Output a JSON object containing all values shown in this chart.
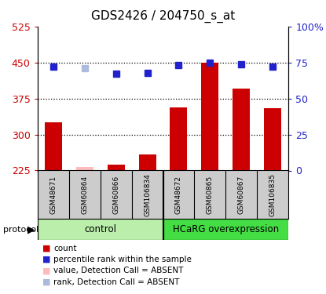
{
  "title": "GDS2426 / 204750_s_at",
  "samples": [
    "GSM48671",
    "GSM60864",
    "GSM60866",
    "GSM106834",
    "GSM48672",
    "GSM60865",
    "GSM60867",
    "GSM106835"
  ],
  "bar_values": [
    325,
    232,
    238,
    258,
    357,
    450,
    395,
    355
  ],
  "bar_colors": [
    "#cc0000",
    "#ffbbbb",
    "#cc0000",
    "#cc0000",
    "#cc0000",
    "#cc0000",
    "#cc0000",
    "#cc0000"
  ],
  "rank_values": [
    72,
    71,
    67,
    68,
    73,
    75,
    74,
    72
  ],
  "rank_colors": [
    "#2222cc",
    "#aabbdd",
    "#2222cc",
    "#2222cc",
    "#2222cc",
    "#2222cc",
    "#2222cc",
    "#2222cc"
  ],
  "ylim_left": [
    225,
    525
  ],
  "ylim_right": [
    0,
    100
  ],
  "yticks_left": [
    225,
    300,
    375,
    450,
    525
  ],
  "yticks_right": [
    0,
    25,
    50,
    75,
    100
  ],
  "ytick_labels_right": [
    "0",
    "25",
    "50",
    "75",
    "100%"
  ],
  "protocol_groups": [
    {
      "label": "control",
      "start": 0,
      "end": 4,
      "color": "#bbeeaa"
    },
    {
      "label": "HCaRG overexpression",
      "start": 4,
      "end": 8,
      "color": "#44dd44"
    }
  ],
  "protocol_label": "protocol",
  "legend_items": [
    {
      "label": "count",
      "color": "#cc0000"
    },
    {
      "label": "percentile rank within the sample",
      "color": "#2222cc"
    },
    {
      "label": "value, Detection Call = ABSENT",
      "color": "#ffbbbb"
    },
    {
      "label": "rank, Detection Call = ABSENT",
      "color": "#aabbdd"
    }
  ],
  "bar_width": 0.55,
  "background_color": "#ffffff",
  "plot_bg_color": "#ffffff",
  "left_tick_color": "#cc0000",
  "right_tick_color": "#2222cc",
  "grid_yticks": [
    300,
    375,
    450
  ],
  "sample_bg_color": "#cccccc",
  "title_fontsize": 11
}
